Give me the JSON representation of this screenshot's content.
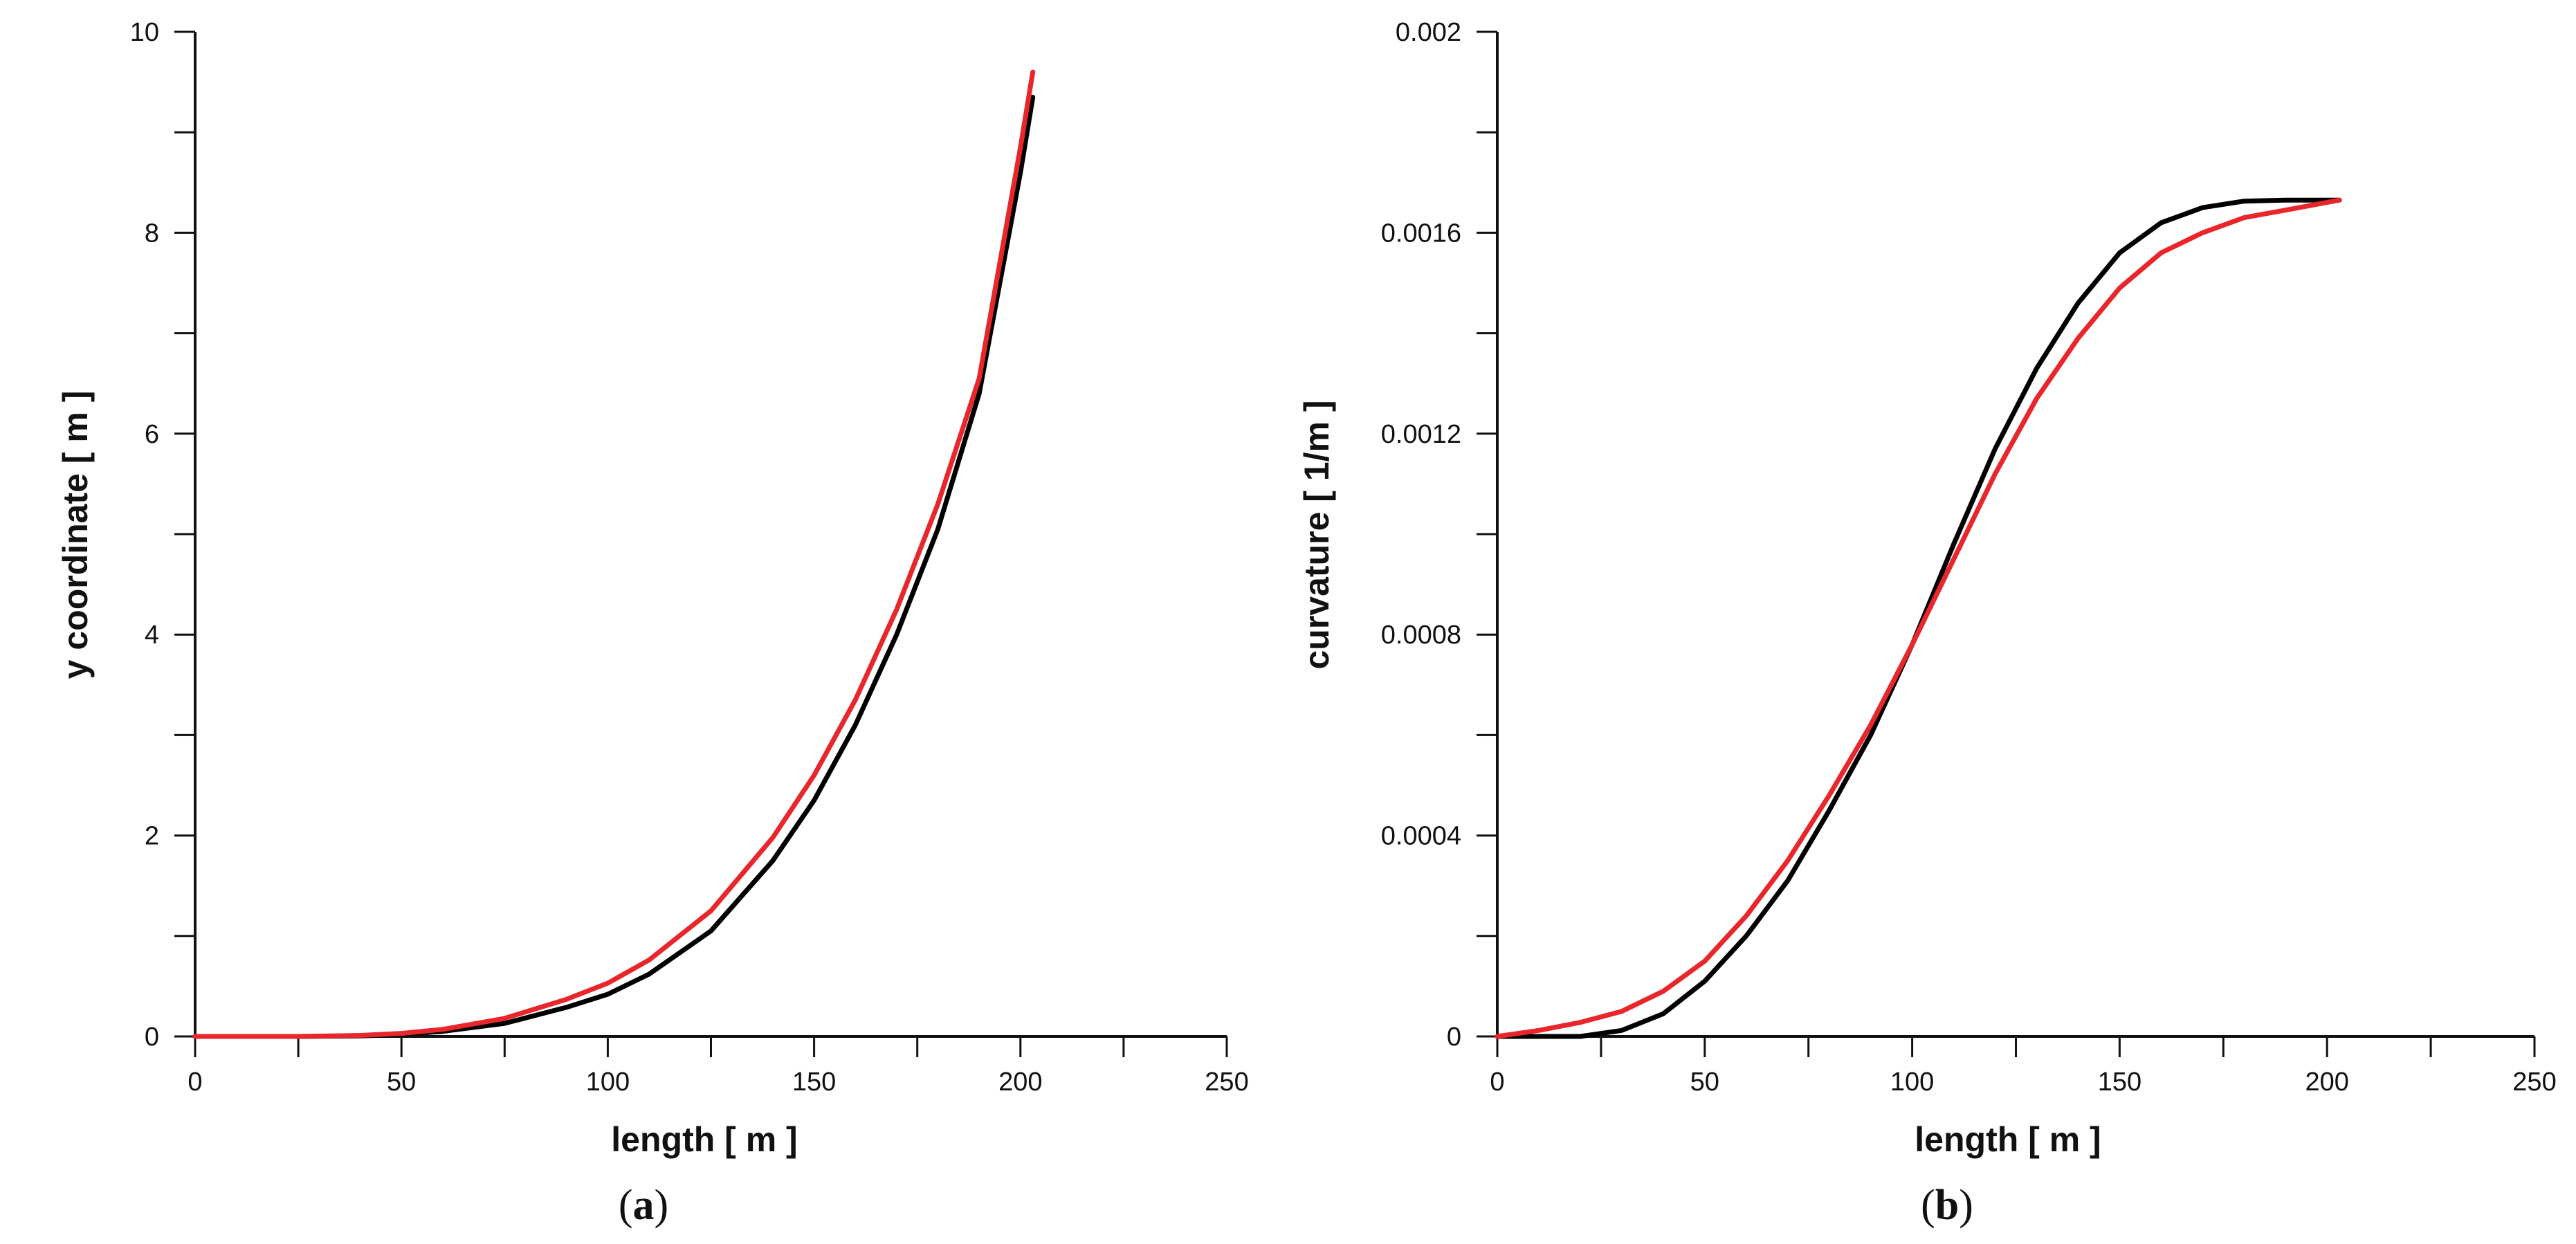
{
  "chart_data": [
    {
      "type": "line",
      "panel_label": {
        "open": "(",
        "letter": "a",
        "close": ")"
      },
      "xlabel": "length [ m ]",
      "ylabel": "y coordinate [ m ]",
      "xlim": [
        0,
        250
      ],
      "ylim": [
        0,
        10
      ],
      "x_ticks": [
        0,
        50,
        100,
        150,
        200,
        250
      ],
      "x_tick_labels": [
        "0",
        "50",
        "100",
        "150",
        "200",
        "250"
      ],
      "y_ticks": [
        0,
        2,
        4,
        6,
        8,
        10
      ],
      "y_tick_labels": [
        "0",
        "2",
        "4",
        "6",
        "8",
        "10"
      ],
      "grid": false,
      "series": [
        {
          "color": "#000000",
          "points": [
            [
              0,
              0
            ],
            [
              25,
              0
            ],
            [
              40,
              0.005
            ],
            [
              50,
              0.02
            ],
            [
              60,
              0.05
            ],
            [
              75,
              0.13
            ],
            [
              90,
              0.29
            ],
            [
              100,
              0.42
            ],
            [
              110,
              0.62
            ],
            [
              125,
              1.05
            ],
            [
              140,
              1.75
            ],
            [
              150,
              2.35
            ],
            [
              160,
              3.1
            ],
            [
              170,
              4.0
            ],
            [
              180,
              5.05
            ],
            [
              190,
              6.4
            ],
            [
              200,
              8.6
            ],
            [
              203,
              9.35
            ]
          ]
        },
        {
          "color": "#e8262b",
          "points": [
            [
              0,
              0
            ],
            [
              25,
              0
            ],
            [
              40,
              0.01
            ],
            [
              50,
              0.03
            ],
            [
              60,
              0.07
            ],
            [
              75,
              0.18
            ],
            [
              90,
              0.37
            ],
            [
              100,
              0.53
            ],
            [
              110,
              0.76
            ],
            [
              125,
              1.25
            ],
            [
              140,
              1.98
            ],
            [
              150,
              2.6
            ],
            [
              160,
              3.35
            ],
            [
              170,
              4.25
            ],
            [
              180,
              5.3
            ],
            [
              190,
              6.55
            ],
            [
              200,
              8.85
            ],
            [
              203,
              9.6
            ]
          ]
        }
      ]
    },
    {
      "type": "line",
      "panel_label": {
        "open": "(",
        "letter": "b",
        "close": ")"
      },
      "xlabel": "length [ m ]",
      "ylabel": "curvature [ 1/m ]",
      "xlim": [
        0,
        250
      ],
      "ylim": [
        0,
        0.002
      ],
      "x_ticks": [
        0,
        50,
        100,
        150,
        200,
        250
      ],
      "x_tick_labels": [
        "0",
        "50",
        "100",
        "150",
        "200",
        "250"
      ],
      "y_ticks": [
        0,
        0.0004,
        0.0008,
        0.0012,
        0.0016,
        0.002
      ],
      "y_tick_labels": [
        "0",
        "0.0004",
        "0.0008",
        "0.0012",
        "0.0016",
        "0.002"
      ],
      "grid": false,
      "series": [
        {
          "color": "#000000",
          "points": [
            [
              0,
              0
            ],
            [
              20,
              0
            ],
            [
              30,
              1.2e-05
            ],
            [
              40,
              4.5e-05
            ],
            [
              50,
              0.00011
            ],
            [
              60,
              0.0002
            ],
            [
              70,
              0.00031
            ],
            [
              80,
              0.00045
            ],
            [
              90,
              0.0006
            ],
            [
              100,
              0.00078
            ],
            [
              110,
              0.00098
            ],
            [
              120,
              0.00117
            ],
            [
              130,
              0.00133
            ],
            [
              140,
              0.00146
            ],
            [
              150,
              0.00156
            ],
            [
              160,
              0.00162
            ],
            [
              170,
              0.00165
            ],
            [
              180,
              0.001663
            ],
            [
              190,
              0.001665
            ],
            [
              203,
              0.001665
            ]
          ]
        },
        {
          "color": "#e8262b",
          "points": [
            [
              0,
              0
            ],
            [
              10,
              1.2e-05
            ],
            [
              20,
              2.8e-05
            ],
            [
              30,
              5e-05
            ],
            [
              40,
              9e-05
            ],
            [
              50,
              0.00015
            ],
            [
              60,
              0.00024
            ],
            [
              70,
              0.00035
            ],
            [
              80,
              0.00048
            ],
            [
              90,
              0.00062
            ],
            [
              100,
              0.00078
            ],
            [
              110,
              0.00095
            ],
            [
              120,
              0.00112
            ],
            [
              130,
              0.00127
            ],
            [
              140,
              0.00139
            ],
            [
              150,
              0.00149
            ],
            [
              160,
              0.00156
            ],
            [
              170,
              0.0016
            ],
            [
              180,
              0.00163
            ],
            [
              190,
              0.001645
            ],
            [
              203,
              0.001665
            ]
          ]
        }
      ]
    }
  ]
}
